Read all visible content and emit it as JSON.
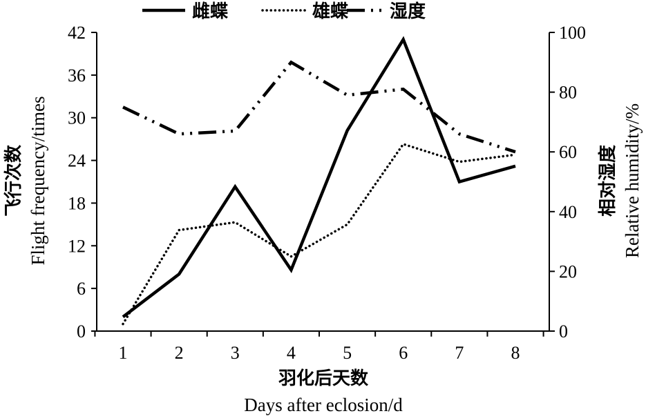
{
  "chart_data": {
    "type": "line",
    "x": [
      1,
      2,
      3,
      4,
      5,
      6,
      7,
      8
    ],
    "series": [
      {
        "name": "雌蝶",
        "axis": "left",
        "style": "solid",
        "values": [
          2,
          8,
          20.3,
          8.6,
          28.2,
          41,
          21,
          23.2
        ]
      },
      {
        "name": "雄蝶",
        "axis": "left",
        "style": "dotted",
        "values": [
          1,
          14.2,
          15.3,
          10.5,
          15,
          26.3,
          23.8,
          24.8
        ]
      },
      {
        "name": "湿度",
        "axis": "right",
        "style": "dash-dot",
        "values": [
          75,
          66,
          67,
          90,
          79,
          81,
          66,
          60
        ]
      }
    ],
    "xlabel_zh": "羽化后天数",
    "xlabel_en": "Days after eclosion/d",
    "ylabel_left_zh": "飞行次数",
    "ylabel_left_en": "Flight frequency/times",
    "ylabel_right_zh": "相对湿度",
    "ylabel_right_en": "Relative humidity/%",
    "xticks": [
      "1",
      "2",
      "3",
      "4",
      "5",
      "6",
      "7",
      "8"
    ],
    "yticks_left": [
      "0",
      "6",
      "12",
      "18",
      "24",
      "30",
      "36",
      "42"
    ],
    "yticks_right": [
      "0",
      "20",
      "40",
      "60",
      "80",
      "100"
    ],
    "ylim_left": [
      0,
      42
    ],
    "ylim_right": [
      0,
      100
    ],
    "legend_position": "top",
    "grid": false
  }
}
